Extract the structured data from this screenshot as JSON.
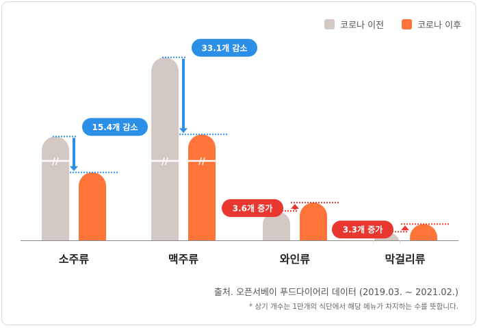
{
  "chart_data": {
    "type": "bar",
    "categories": [
      "소주류",
      "맥주류",
      "와인류",
      "막걸리류"
    ],
    "series": [
      {
        "name": "코로나 이전",
        "color": "#d4c8c4",
        "values": [
          44.6,
          78.6,
          12.6,
          3.7
        ]
      },
      {
        "name": "코로나 이후",
        "color": "#ff7438",
        "values": [
          29.2,
          45.5,
          16.2,
          7.0
        ]
      }
    ],
    "axis_break": true,
    "annotations": [
      {
        "category": "소주류",
        "text": "15.4개 감소",
        "direction": "down"
      },
      {
        "category": "맥주류",
        "text": "33.1개 감소",
        "direction": "down"
      },
      {
        "category": "와인류",
        "text": "3.6개 증가",
        "direction": "up"
      },
      {
        "category": "막걸리류",
        "text": "3.3개 증가",
        "direction": "up"
      }
    ],
    "legend_position": "top-right"
  },
  "colors": {
    "decrease": "#2b8fe8",
    "increase": "#e8372e",
    "baseline": "#888888"
  },
  "footer": {
    "source": "출처. 오픈서베이 푸드다이어리 데이터 (2019.03. ~ 2021.02.)",
    "note": "* 상기 개수는 1만개의 식단에서 해당 메뉴가 차지하는 수를 뜻합니다."
  }
}
